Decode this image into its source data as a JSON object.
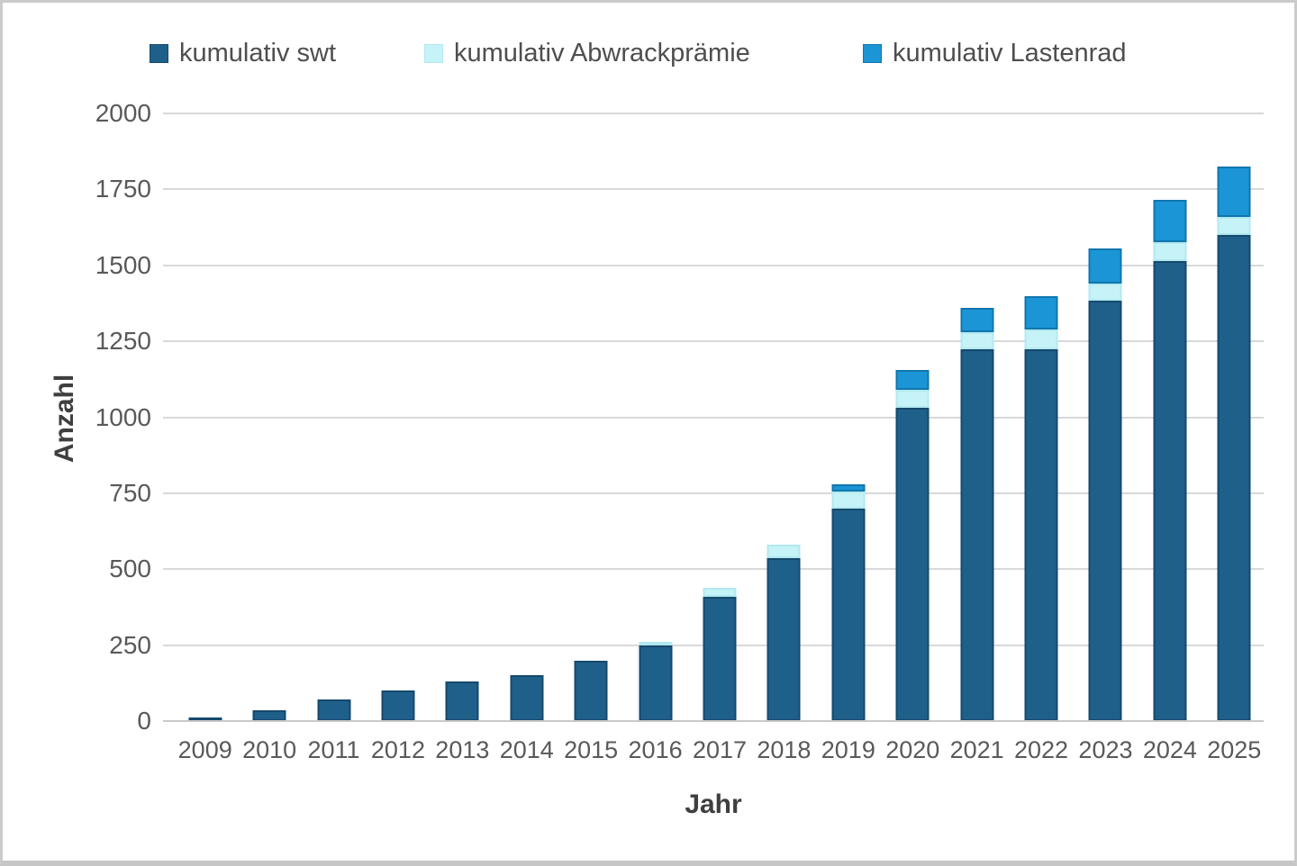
{
  "chart_data": {
    "type": "bar",
    "subtype": "stacked-vertical",
    "title": "",
    "xlabel": "Jahr",
    "ylabel": "Anzahl",
    "ylim": [
      0,
      2000
    ],
    "ytick_step": 250,
    "ytick_labels": [
      "0",
      "250",
      "500",
      "750",
      "1000",
      "1250",
      "1500",
      "1750",
      "2000"
    ],
    "grid": true,
    "legend_position": "top",
    "categories": [
      "2009",
      "2010",
      "2011",
      "2012",
      "2013",
      "2014",
      "2015",
      "2016",
      "2017",
      "2018",
      "2019",
      "2020",
      "2021",
      "2022",
      "2023",
      "2024",
      "2025"
    ],
    "series": [
      {
        "name": "kumulativ swt",
        "color": "#1f608a",
        "border_color": "#16496d",
        "values": [
          10,
          35,
          70,
          100,
          130,
          150,
          200,
          250,
          410,
          535,
          700,
          1030,
          1225,
          1225,
          1385,
          1515,
          1600
        ]
      },
      {
        "name": "kumulativ Abwrackprämie",
        "color": "#c6f3f7",
        "border_color": "#b2e9f0",
        "values": [
          0,
          0,
          0,
          0,
          0,
          0,
          0,
          10,
          30,
          45,
          55,
          60,
          55,
          65,
          55,
          60,
          60
        ]
      },
      {
        "name": "kumulativ Lastenrad",
        "color": "#1b95d6",
        "border_color": "#1176ad",
        "values": [
          0,
          0,
          0,
          0,
          0,
          0,
          0,
          0,
          0,
          0,
          25,
          65,
          80,
          110,
          115,
          140,
          165
        ]
      }
    ]
  },
  "colors": {
    "gridline": "#d9d9d9",
    "axis_line": "#c9c9c9",
    "tick_text": "#595959",
    "axis_title_text": "#3f3f3f",
    "background": "#ffffff",
    "frame_border": "#cbcbcb"
  }
}
